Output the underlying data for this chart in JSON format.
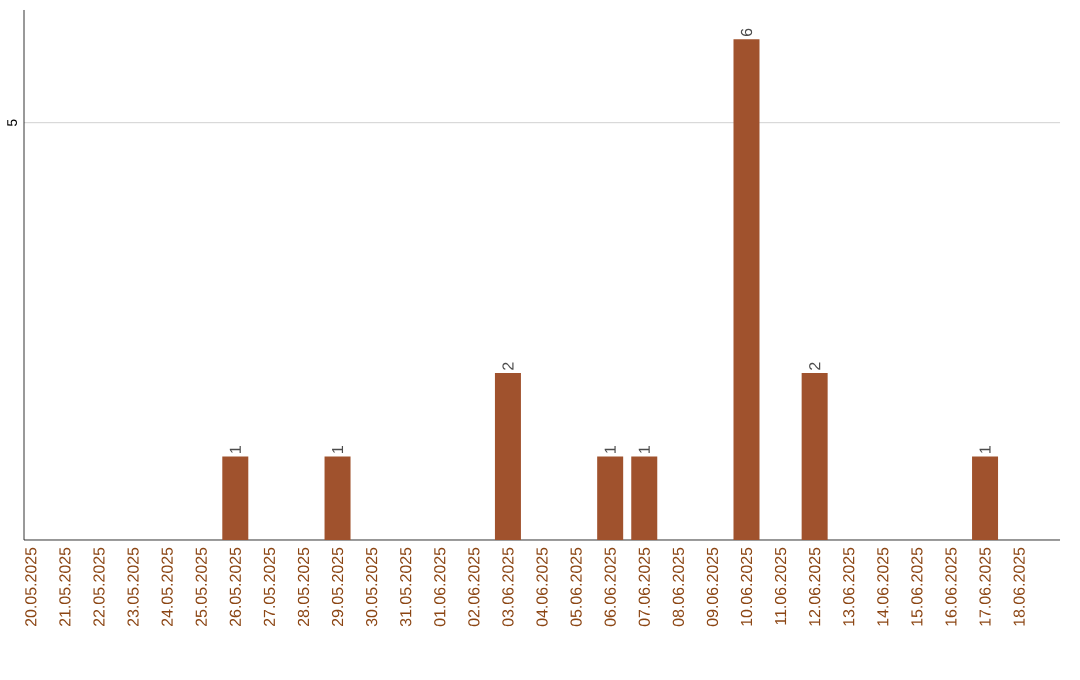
{
  "chart_data": {
    "type": "bar",
    "categories": [
      "20.05.2025",
      "21.05.2025",
      "22.05.2025",
      "23.05.2025",
      "24.05.2025",
      "25.05.2025",
      "26.05.2025",
      "27.05.2025",
      "28.05.2025",
      "29.05.2025",
      "30.05.2025",
      "31.05.2025",
      "01.06.2025",
      "02.06.2025",
      "03.06.2025",
      "04.06.2025",
      "05.06.2025",
      "06.06.2025",
      "07.06.2025",
      "08.06.2025",
      "09.06.2025",
      "10.06.2025",
      "11.06.2025",
      "12.06.2025",
      "13.06.2025",
      "14.06.2025",
      "15.06.2025",
      "16.06.2025",
      "17.06.2025",
      "18.06.2025"
    ],
    "values": [
      0,
      0,
      0,
      0,
      0,
      0,
      1,
      0,
      0,
      1,
      0,
      0,
      0,
      0,
      2,
      0,
      0,
      1,
      1,
      0,
      0,
      6,
      0,
      2,
      0,
      0,
      0,
      0,
      1,
      0
    ],
    "value_labels": [
      null,
      null,
      null,
      null,
      null,
      null,
      "1",
      null,
      null,
      "1",
      null,
      null,
      null,
      null,
      "2",
      null,
      null,
      "1",
      "1",
      null,
      null,
      "6",
      null,
      "2",
      null,
      null,
      null,
      null,
      "1",
      null
    ],
    "color": "#a0522d",
    "ylim": [
      0,
      6.35
    ],
    "yticks": [
      5
    ],
    "grid": "y"
  }
}
